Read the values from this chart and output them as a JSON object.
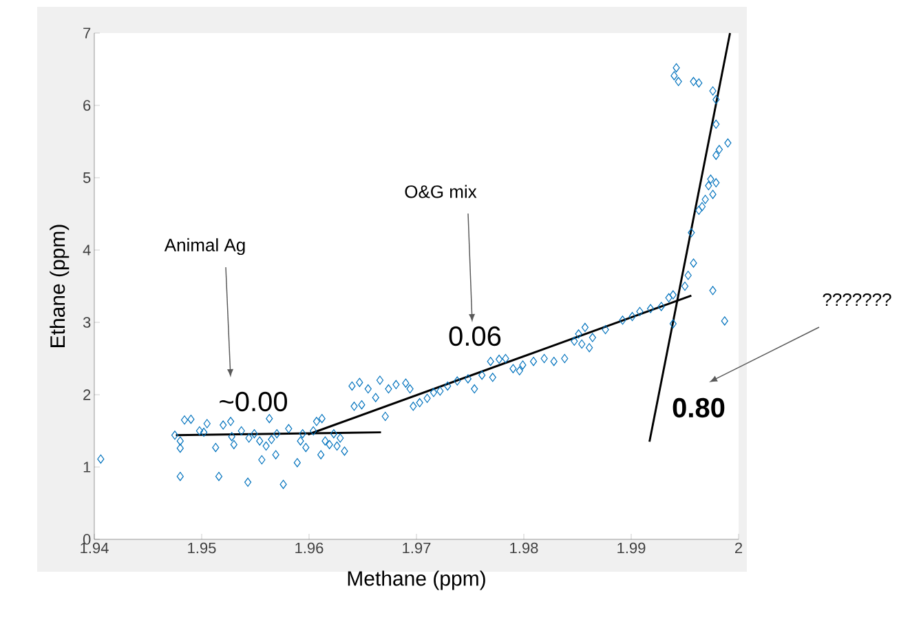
{
  "chart_data": {
    "type": "scatter",
    "xlabel": "Methane (ppm)",
    "ylabel": "Ethane (ppm)",
    "xlim": [
      1.94,
      2.0
    ],
    "ylim": [
      0,
      7
    ],
    "xticks": [
      1.94,
      1.95,
      1.96,
      1.97,
      1.98,
      1.99,
      2
    ],
    "yticks": [
      0,
      1,
      2,
      3,
      4,
      5,
      6,
      7
    ],
    "grid": false,
    "series": [
      {
        "marker": "diamond",
        "color": "#0072bd",
        "x": [
          1.9406,
          1.948,
          1.948,
          1.948,
          1.9475,
          1.9484,
          1.949,
          1.9498,
          1.9502,
          1.9505,
          1.9513,
          1.9516,
          1.952,
          1.9527,
          1.9528,
          1.953,
          1.9537,
          1.9543,
          1.9544,
          1.9549,
          1.9554,
          1.9556,
          1.956,
          1.9563,
          1.9565,
          1.9569,
          1.957,
          1.9576,
          1.9581,
          1.9589,
          1.9592,
          1.9594,
          1.9597,
          1.9604,
          1.9607,
          1.9611,
          1.9612,
          1.9615,
          1.9619,
          1.9623,
          1.9626,
          1.9629,
          1.9633,
          1.964,
          1.9642,
          1.9647,
          1.9649,
          1.9655,
          1.9662,
          1.9666,
          1.9671,
          1.9674,
          1.9681,
          1.969,
          1.9694,
          1.9697,
          1.9703,
          1.971,
          1.9716,
          1.9722,
          1.9729,
          1.9738,
          1.9748,
          1.9754,
          1.9761,
          1.9769,
          1.9771,
          1.9777,
          1.9783,
          1.979,
          1.9796,
          1.9799,
          1.9809,
          1.9819,
          1.9828,
          1.9838,
          1.9847,
          1.9851,
          1.9854,
          1.9857,
          1.9861,
          1.9864,
          1.9876,
          1.9892,
          1.9901,
          1.9908,
          1.9918,
          1.9928,
          1.9935,
          1.9939,
          1.9939,
          1.995,
          1.9953,
          1.9958,
          1.9956,
          1.9963,
          1.9966,
          1.9969,
          1.9972,
          1.9974,
          1.9976,
          1.9979,
          1.9976,
          1.9987,
          1.9979,
          1.9982,
          1.999,
          1.9979,
          1.9976,
          1.9979,
          1.9958,
          1.9963,
          1.994,
          1.9942,
          1.9944
        ],
        "values": [
          1.11,
          0.87,
          1.26,
          1.36,
          1.44,
          1.65,
          1.66,
          1.5,
          1.48,
          1.6,
          1.27,
          0.87,
          1.58,
          1.63,
          1.42,
          1.31,
          1.5,
          0.79,
          1.4,
          1.46,
          1.36,
          1.1,
          1.29,
          1.67,
          1.38,
          1.17,
          1.46,
          0.76,
          1.53,
          1.06,
          1.36,
          1.46,
          1.27,
          1.5,
          1.63,
          1.17,
          1.67,
          1.36,
          1.31,
          1.46,
          1.29,
          1.4,
          1.22,
          2.12,
          1.84,
          2.17,
          1.86,
          2.08,
          1.96,
          2.2,
          1.7,
          2.08,
          2.14,
          2.16,
          2.08,
          1.84,
          1.89,
          1.95,
          2.03,
          2.05,
          2.12,
          2.19,
          2.22,
          2.08,
          2.27,
          2.46,
          2.24,
          2.49,
          2.5,
          2.36,
          2.33,
          2.41,
          2.46,
          2.5,
          2.46,
          2.5,
          2.74,
          2.84,
          2.7,
          2.93,
          2.65,
          2.79,
          2.9,
          3.03,
          3.08,
          3.15,
          3.19,
          3.22,
          3.34,
          3.38,
          2.98,
          3.5,
          3.65,
          3.82,
          4.24,
          4.55,
          4.6,
          4.7,
          4.89,
          4.98,
          4.77,
          4.93,
          3.44,
          3.02,
          5.31,
          5.39,
          5.48,
          5.74,
          6.2,
          6.08,
          6.33,
          6.31,
          6.41,
          6.52,
          6.33
        ]
      },
      {
        "type": "line",
        "marker": "none",
        "color": "#000000",
        "x": [
          1.9476,
          1.9667
        ],
        "values": [
          1.44,
          1.48
        ]
      },
      {
        "type": "line",
        "marker": "none",
        "color": "#000000",
        "x": [
          1.9599,
          1.9956
        ],
        "values": [
          1.45,
          3.37
        ]
      },
      {
        "type": "line",
        "marker": "none",
        "color": "#000000",
        "x": [
          1.9917,
          1.9992
        ],
        "values": [
          1.35,
          7
        ]
      }
    ],
    "annotations": [
      "~0.00",
      "0.06",
      "0.80",
      "Animal Ag",
      "O&G mix",
      "???????"
    ]
  }
}
